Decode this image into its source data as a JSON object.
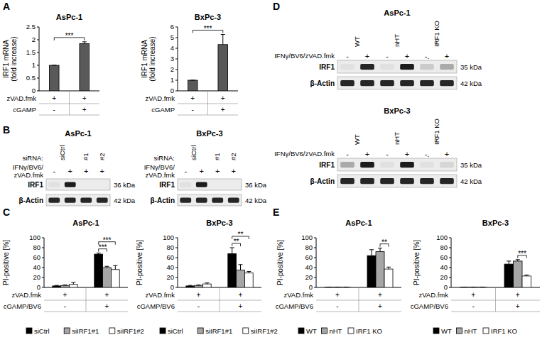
{
  "panel_labels": [
    "A",
    "B",
    "C",
    "D",
    "E"
  ],
  "chart_data": [
    {
      "type": "bar",
      "title": "AsPc-1",
      "y_label": [
        "IRF1 mRNA",
        "(fold increase)"
      ],
      "categories": [
        null,
        null
      ],
      "conditions": [
        {
          "label": "zVAD.fmk",
          "values": [
            "+",
            "+"
          ]
        },
        {
          "label": "cGAMP",
          "values": [
            "-",
            "+"
          ]
        }
      ],
      "values": [
        1,
        1.85
      ],
      "errors": [
        0,
        0.07
      ],
      "color": "#595959",
      "ylim": [
        0,
        2.5
      ],
      "yticks": [
        0,
        0.5,
        1,
        1.5,
        2,
        2.5
      ],
      "grid": false,
      "annotations": [
        {
          "text": "***",
          "from": 0,
          "to": 1
        }
      ]
    },
    {
      "type": "bar",
      "title": "BxPc-3",
      "y_label": [
        "IRF1 mRNA",
        "(fold increase)"
      ],
      "categories": [
        null,
        null
      ],
      "conditions": [
        {
          "label": "zVAD.fmk",
          "values": [
            "+",
            "+"
          ]
        },
        {
          "label": "cGAMP",
          "values": [
            "-",
            "+"
          ]
        }
      ],
      "values": [
        1,
        4.35
      ],
      "errors": [
        0,
        0.95
      ],
      "color": "#595959",
      "ylim": [
        0,
        6
      ],
      "yticks": [
        0,
        1,
        2,
        3,
        4,
        5,
        6
      ],
      "grid": false,
      "annotations": [
        {
          "text": "***",
          "from": 0,
          "to": 1
        }
      ]
    },
    {
      "type": "bar",
      "title": "AsPc-1",
      "y_label": [
        "PI-positive [%]"
      ],
      "categories": [
        null,
        null
      ],
      "conditions": [
        {
          "label": "zVAD.fmk",
          "values": [
            "+",
            "+"
          ]
        },
        {
          "label": "cGAMP/BV6",
          "values": [
            "-",
            "+"
          ]
        }
      ],
      "series": [
        {
          "name": "siCtrl",
          "color": "#000000",
          "values": [
            3,
            67
          ],
          "errors": [
            1,
            2
          ]
        },
        {
          "name": "siIRF1#1",
          "color": "#a6a6a6",
          "values": [
            4,
            40
          ],
          "errors": [
            1,
            2.5
          ]
        },
        {
          "name": "siIRF1#2",
          "color": "#ffffff",
          "values": [
            6,
            36
          ],
          "errors": [
            4,
            8
          ]
        }
      ],
      "ylim": [
        0,
        100
      ],
      "yticks": [
        0,
        20,
        40,
        60,
        80,
        100
      ],
      "grid": false,
      "legend": "bottom",
      "annotations": [
        {
          "text": "***",
          "group": 1,
          "from": 0,
          "to": 1
        },
        {
          "text": "***",
          "group": 1,
          "from": 0,
          "to": 2
        }
      ]
    },
    {
      "type": "bar",
      "title": "BxPc-3",
      "y_label": [
        "PI-positive [%]"
      ],
      "categories": [
        null,
        null
      ],
      "conditions": [
        {
          "label": "zVAD.fmk",
          "values": [
            "+",
            "+"
          ]
        },
        {
          "label": "cGAMP/BV6",
          "values": [
            "-",
            "+"
          ]
        }
      ],
      "series": [
        {
          "name": "siCtrl",
          "color": "#000000",
          "values": [
            3,
            68
          ],
          "errors": [
            1,
            12
          ]
        },
        {
          "name": "siIRF1#1",
          "color": "#a6a6a6",
          "values": [
            4,
            35
          ],
          "errors": [
            1,
            11
          ]
        },
        {
          "name": "siIRF1#2",
          "color": "#ffffff",
          "values": [
            7,
            29
          ],
          "errors": [
            2,
            3
          ]
        }
      ],
      "ylim": [
        0,
        100
      ],
      "yticks": [
        0,
        20,
        40,
        60,
        80,
        100
      ],
      "grid": false,
      "legend": "bottom",
      "annotations": [
        {
          "text": "**",
          "group": 1,
          "from": 0,
          "to": 1
        },
        {
          "text": "**",
          "group": 1,
          "from": 0,
          "to": 2
        }
      ]
    },
    {
      "type": "bar",
      "title": "AsPc-1",
      "y_label": [
        "PI-positive [%]"
      ],
      "categories": [
        null,
        null
      ],
      "conditions": [
        {
          "label": "zVAD.fmk",
          "values": [
            "+",
            "+"
          ]
        },
        {
          "label": "cGAMP/BV6",
          "values": [
            "-",
            "+"
          ]
        }
      ],
      "series": [
        {
          "name": "WT",
          "color": "#000000",
          "values": [
            0.5,
            64
          ],
          "errors": [
            0.3,
            12
          ]
        },
        {
          "name": "nHT",
          "color": "#a6a6a6",
          "values": [
            0.5,
            72
          ],
          "errors": [
            0.3,
            7
          ]
        },
        {
          "name": "IRF1 KO",
          "color": "#ffffff",
          "values": [
            0.5,
            37
          ],
          "errors": [
            0.3,
            4
          ]
        }
      ],
      "ylim": [
        0,
        100
      ],
      "yticks": [
        0,
        20,
        40,
        60,
        80,
        100
      ],
      "grid": false,
      "legend": "bottom",
      "annotations": [
        {
          "text": "**",
          "group": 1,
          "from": 1,
          "to": 2
        }
      ]
    },
    {
      "type": "bar",
      "title": "BxPc-3",
      "y_label": [
        "PI-positive [%]"
      ],
      "categories": [
        null,
        null
      ],
      "conditions": [
        {
          "label": "zVAD.fmk",
          "values": [
            "+",
            "+"
          ]
        },
        {
          "label": "cGAMP/BV6",
          "values": [
            "-",
            "+"
          ]
        }
      ],
      "series": [
        {
          "name": "WT",
          "color": "#000000",
          "values": [
            0.5,
            47
          ],
          "errors": [
            0.3,
            6
          ]
        },
        {
          "name": "nHT",
          "color": "#a6a6a6",
          "values": [
            0.5,
            53
          ],
          "errors": [
            0.3,
            3
          ]
        },
        {
          "name": "IRF1 KO",
          "color": "#ffffff",
          "values": [
            0.5,
            23
          ],
          "errors": [
            0.3,
            2
          ]
        }
      ],
      "ylim": [
        0,
        100
      ],
      "yticks": [
        0,
        20,
        40,
        60,
        80,
        100
      ],
      "grid": false,
      "legend": "bottom",
      "annotations": [
        {
          "text": "***",
          "group": 1,
          "from": 1,
          "to": 2
        }
      ]
    }
  ],
  "blots": [
    {
      "title": "AsPc-1",
      "header_label": "siRNA:",
      "lane_groups": [
        "siCtrl",
        null,
        "#1",
        "#2"
      ],
      "treatment_label": [
        "IFNγ/BV6/",
        "zVAD.fmk"
      ],
      "treatment": [
        "-",
        "+",
        "+",
        "+"
      ],
      "bands": [
        {
          "name": "IRF1",
          "size": "36 kDa",
          "intensity": [
            0.05,
            0.95,
            0,
            0
          ]
        },
        {
          "name": "β-Actin",
          "size": "42 kDa",
          "intensity": [
            0.9,
            0.9,
            0.9,
            0.9
          ]
        }
      ]
    },
    {
      "title": "BxPc-3",
      "header_label": "siRNA:",
      "lane_groups": [
        "siCtrl",
        null,
        "#1",
        "#2"
      ],
      "treatment_label": [
        "IFNγ/BV6/",
        "zVAD.fmk"
      ],
      "treatment": [
        "-",
        "+",
        "+",
        "+"
      ],
      "bands": [
        {
          "name": "IRF1",
          "size": "36 kDa",
          "intensity": [
            0.05,
            0.95,
            0,
            0
          ]
        },
        {
          "name": "β-Actin",
          "size": "42 kDa",
          "intensity": [
            0.9,
            0.9,
            0.9,
            0.9
          ]
        }
      ]
    },
    {
      "title": "AsPc-1",
      "lane_groups": [
        "WT",
        null,
        "nHT",
        null,
        "IRF1 KO",
        null
      ],
      "treatment_label": [
        "IFNγ/BV6/zVAD.fmk"
      ],
      "treatment": [
        "-",
        "+",
        "-",
        "+",
        "-.",
        "+"
      ],
      "bands": [
        {
          "name": "IRF1",
          "size": "35 kDa",
          "intensity": [
            0.05,
            0.9,
            0.05,
            0.95,
            0.15,
            0.3
          ]
        },
        {
          "name": "β-Actin",
          "size": "42 kDa",
          "intensity": [
            0.9,
            0.9,
            0.9,
            0.9,
            0.9,
            0.9
          ]
        }
      ]
    },
    {
      "title": "BxPc-3",
      "lane_groups": [
        "WT",
        null,
        "nHT",
        null,
        "IRF1 KO",
        null
      ],
      "treatment_label": [
        "IFNγ/BV6/zVAD.fmk"
      ],
      "treatment": [
        "-",
        "+",
        "-",
        "+",
        "-.",
        "+"
      ],
      "bands": [
        {
          "name": "IRF1",
          "size": "35 kDa",
          "intensity": [
            0.3,
            0.95,
            0.05,
            0.95,
            0.05,
            0.1
          ]
        },
        {
          "name": "β-Actin",
          "size": "42 kDa",
          "intensity": [
            0.9,
            0.9,
            0.9,
            0.9,
            0.9,
            0.9
          ]
        }
      ]
    }
  ]
}
